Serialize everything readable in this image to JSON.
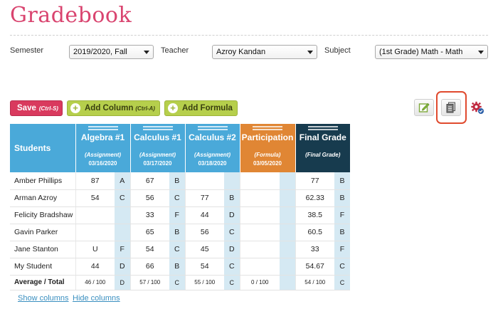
{
  "page": {
    "title": "Gradebook"
  },
  "filters": {
    "semester_label": "Semester",
    "semester_value": "2019/2020, Fall",
    "teacher_label": "Teacher",
    "teacher_value": "Azroy Kandan",
    "subject_label": "Subject",
    "subject_value": "(1st Grade) Math - Math"
  },
  "toolbar": {
    "save_label": "Save",
    "save_shortcut": "(Ctrl-S)",
    "add_column_label": "Add Column",
    "add_column_shortcut": "(Ctrl-A)",
    "add_formula_label": "Add Formula",
    "icons": [
      "edit-icon",
      "document-icon",
      "settings-gear-icon"
    ]
  },
  "table": {
    "students_header": "Students",
    "columns": [
      {
        "name": "Algebra #1",
        "type": "(Assignment)",
        "date": "03/16/2020",
        "color": "#4aa9d9"
      },
      {
        "name": "Calculus #1",
        "type": "(Assignment)",
        "date": "03/17/2020",
        "color": "#4aa9d9"
      },
      {
        "name": "Calculus #2",
        "type": "(Assignment)",
        "date": "03/18/2020",
        "color": "#4aa9d9"
      },
      {
        "name": "Participation",
        "type": "(Formula)",
        "date": "03/05/2020",
        "color": "#e08634"
      },
      {
        "name": "Final Grade",
        "type": "(Final Grade)",
        "date": "",
        "color": "#173b4e"
      }
    ],
    "rows": [
      {
        "name": "Amber Phillips",
        "cells": [
          [
            "87",
            "A"
          ],
          [
            "67",
            "B"
          ],
          [
            "",
            ""
          ],
          [
            "",
            ""
          ],
          [
            "77",
            "B"
          ]
        ]
      },
      {
        "name": "Arman Azroy",
        "cells": [
          [
            "54",
            "C"
          ],
          [
            "56",
            "C"
          ],
          [
            "77",
            "B"
          ],
          [
            "",
            ""
          ],
          [
            "62.33",
            "B"
          ]
        ]
      },
      {
        "name": "Felicity Bradshaw",
        "cells": [
          [
            "",
            ""
          ],
          [
            "33",
            "F"
          ],
          [
            "44",
            "D"
          ],
          [
            "",
            ""
          ],
          [
            "38.5",
            "F"
          ]
        ]
      },
      {
        "name": "Gavin Parker",
        "cells": [
          [
            "",
            ""
          ],
          [
            "65",
            "B"
          ],
          [
            "56",
            "C"
          ],
          [
            "",
            ""
          ],
          [
            "60.5",
            "B"
          ]
        ]
      },
      {
        "name": "Jane Stanton",
        "cells": [
          [
            "U",
            "F"
          ],
          [
            "54",
            "C"
          ],
          [
            "45",
            "D"
          ],
          [
            "",
            ""
          ],
          [
            "33",
            "F"
          ]
        ]
      },
      {
        "name": "My Student",
        "cells": [
          [
            "44",
            "D"
          ],
          [
            "66",
            "B"
          ],
          [
            "54",
            "C"
          ],
          [
            "",
            ""
          ],
          [
            "54.67",
            "C"
          ]
        ]
      }
    ],
    "total": {
      "name": "Average / Total",
      "cells": [
        [
          "46 / 100",
          "D"
        ],
        [
          "57 / 100",
          "C"
        ],
        [
          "55 / 100",
          "C"
        ],
        [
          "0 / 100",
          ""
        ],
        [
          "54 / 100",
          "C"
        ]
      ]
    }
  },
  "links": {
    "show_columns": "Show columns",
    "hide_columns": "Hide columns"
  }
}
